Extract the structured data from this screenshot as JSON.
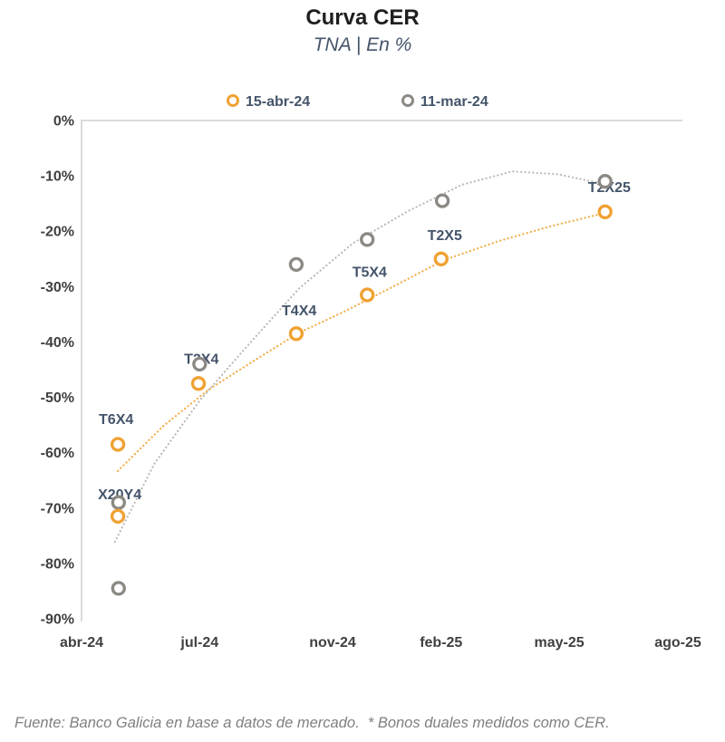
{
  "page": {
    "background": "#FFFFFF"
  },
  "chart_data": {
    "type": "scatter",
    "title": "Curva CER",
    "subtitle": "TNA | En %",
    "footnote": "Fuente: Banco Galicia en base a datos de mercado.  * Bonos duales medidos como CER.",
    "legend_position": "top",
    "grid": false,
    "y_axis": {
      "unit": "%",
      "min": -90,
      "max": 0,
      "ticks": [
        {
          "label": "0%",
          "value": 0
        },
        {
          "label": "-10%",
          "value": -10
        },
        {
          "label": "-20%",
          "value": -20
        },
        {
          "label": "-30%",
          "value": -30
        },
        {
          "label": "-40%",
          "value": -40
        },
        {
          "label": "-50%",
          "value": -50
        },
        {
          "label": "-60%",
          "value": -60
        },
        {
          "label": "-70%",
          "value": -70
        },
        {
          "label": "-80%",
          "value": -80
        },
        {
          "label": "-90%",
          "value": -90
        }
      ]
    },
    "x_axis": {
      "ticks": [
        {
          "label": "abr-24",
          "pct": 0
        },
        {
          "label": "jul-24",
          "pct": 19.8
        },
        {
          "label": "nov-24",
          "pct": 42.1
        },
        {
          "label": "feb-25",
          "pct": 60.3
        },
        {
          "label": "may-25",
          "pct": 80.1
        },
        {
          "label": "ago-25",
          "pct": 100
        }
      ]
    },
    "series": [
      {
        "name": "15-abr-24",
        "color": "#F0A132",
        "trend_color": "#F2AB45",
        "points": [
          {
            "bond": "T6X4",
            "x_pct": 6.1,
            "tna_pct": -58.5
          },
          {
            "bond": "X20Y4",
            "x_pct": 6.1,
            "tna_pct": -71.5
          },
          {
            "bond": "T2X4",
            "x_pct": 19.6,
            "tna_pct": -47.5
          },
          {
            "bond": "T4X4",
            "x_pct": 36.0,
            "tna_pct": -38.5
          },
          {
            "bond": "T5X4",
            "x_pct": 47.9,
            "tna_pct": -31.5
          },
          {
            "bond": "T2X5",
            "x_pct": 60.3,
            "tna_pct": -25
          },
          {
            "bond": "T2X25",
            "x_pct": 87.8,
            "tna_pct": -16.5
          }
        ],
        "trend": [
          [
            6.1,
            -63.3
          ],
          [
            13.7,
            -55.2
          ],
          [
            21.3,
            -48.6
          ],
          [
            28.9,
            -43.4
          ],
          [
            36.5,
            -38.3
          ],
          [
            44.1,
            -34.5
          ],
          [
            51.7,
            -30.3
          ],
          [
            60.8,
            -25.2
          ],
          [
            69.9,
            -21.8
          ],
          [
            79.0,
            -19.0
          ],
          [
            87.8,
            -16.7
          ]
        ]
      },
      {
        "name": "11-mar-24",
        "color": "#8C8984",
        "trend_color": "#BDBAB5",
        "points": [
          {
            "bond": "T6X4",
            "x_pct": 6.2,
            "tna_pct": -84.5
          },
          {
            "bond": "X20Y4",
            "x_pct": 6.2,
            "tna_pct": -69
          },
          {
            "bond": "T2X4",
            "x_pct": 19.8,
            "tna_pct": -44
          },
          {
            "bond": "T4X4",
            "x_pct": 36.0,
            "tna_pct": -26
          },
          {
            "bond": "T5X4",
            "x_pct": 47.9,
            "tna_pct": -21.5
          },
          {
            "bond": "T2X5",
            "x_pct": 60.5,
            "tna_pct": -14.5
          },
          {
            "bond": "T2X25",
            "x_pct": 87.8,
            "tna_pct": -11
          }
        ],
        "trend": [
          [
            5.6,
            -76.1
          ],
          [
            12.2,
            -62.0
          ],
          [
            19.8,
            -50.6
          ],
          [
            27.4,
            -41.2
          ],
          [
            36.5,
            -30.3
          ],
          [
            45.6,
            -22.1
          ],
          [
            54.7,
            -16.4
          ],
          [
            63.8,
            -11.6
          ],
          [
            72.2,
            -9.2
          ],
          [
            79.8,
            -9.7
          ],
          [
            87.8,
            -11.5
          ]
        ]
      }
    ],
    "point_labels": [
      {
        "text": "T6X4",
        "x_pct": 5.8,
        "y_val": -54.8
      },
      {
        "text": "X20Y4",
        "x_pct": 6.4,
        "y_val": -68.4
      },
      {
        "text": "T2X4",
        "x_pct": 20.1,
        "y_val": -43.9
      },
      {
        "text": "T4X4",
        "x_pct": 36.5,
        "y_val": -35.2
      },
      {
        "text": "T5X4",
        "x_pct": 48.3,
        "y_val": -28.2
      },
      {
        "text": "T2X5",
        "x_pct": 60.9,
        "y_val": -21.6
      },
      {
        "text": "T2X25",
        "x_pct": 88.5,
        "y_val": -12.9
      }
    ]
  }
}
